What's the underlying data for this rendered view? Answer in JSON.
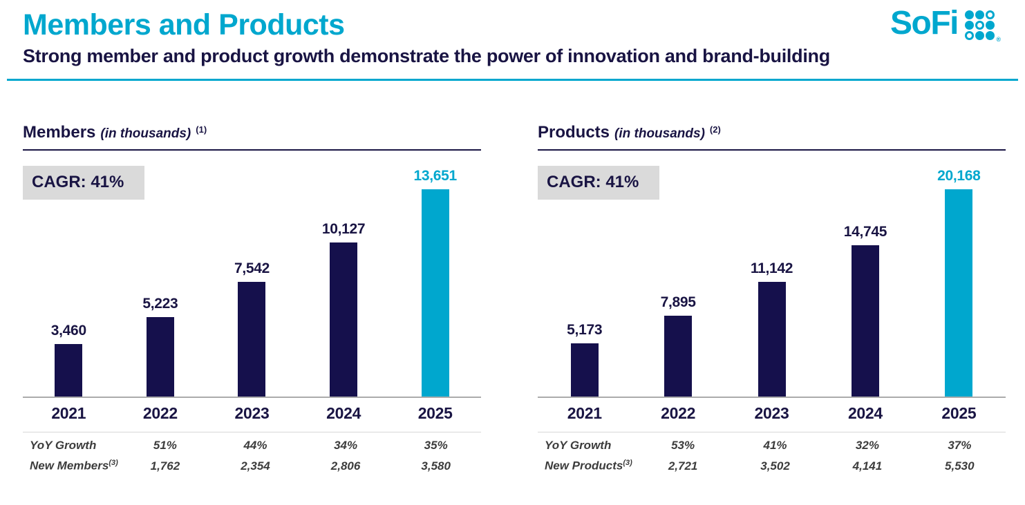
{
  "page": {
    "title": "Members and Products",
    "subtitle": "Strong member and product growth demonstrate the power of innovation and brand-building"
  },
  "logo": {
    "text": "SoFi",
    "registered": "®",
    "dot_pattern": [
      "filled",
      "filled",
      "ring",
      "filled",
      "ring",
      "filled",
      "ring",
      "filled",
      "filled"
    ]
  },
  "colors": {
    "teal": "#00A7CE",
    "navy": "#191443",
    "bar_navy": "#15104C",
    "cagr_bg": "#DADADA",
    "table_text": "#3C3C3C"
  },
  "charts": [
    {
      "title": "Members",
      "unit_label": "(in thousands)",
      "footnote_ref": "(1)",
      "cagr_label": "CAGR: 41%",
      "table": {
        "rows": [
          {
            "label": "YoY Growth",
            "sup": "",
            "values": [
              "51%",
              "44%",
              "34%",
              "35%"
            ]
          },
          {
            "label": "New Members",
            "sup": "(3)",
            "values": [
              "1,762",
              "2,354",
              "2,806",
              "3,580"
            ]
          }
        ]
      }
    },
    {
      "title": "Products",
      "unit_label": "(in thousands)",
      "footnote_ref": "(2)",
      "cagr_label": "CAGR: 41%",
      "table": {
        "rows": [
          {
            "label": "YoY Growth",
            "sup": "",
            "values": [
              "53%",
              "41%",
              "32%",
              "37%"
            ]
          },
          {
            "label": "New Products",
            "sup": "(3)",
            "values": [
              "2,721",
              "3,502",
              "4,141",
              "5,530"
            ]
          }
        ]
      }
    }
  ],
  "chart_data": [
    {
      "type": "bar",
      "title": "Members (in thousands)",
      "categories": [
        "2021",
        "2022",
        "2023",
        "2024",
        "2025"
      ],
      "values": [
        3460,
        5223,
        7542,
        10127,
        13651
      ],
      "value_labels": [
        "3,460",
        "5,223",
        "7,542",
        "10,127",
        "13,651"
      ],
      "highlight_index": 4,
      "bar_color": "#15104C",
      "highlight_color": "#00A7CE",
      "cagr": "41%",
      "yoy_growth": [
        "51%",
        "44%",
        "34%",
        "35%"
      ],
      "new_added": [
        1762,
        2354,
        2806,
        3580
      ],
      "ylim": [
        0,
        13651
      ],
      "grid": false,
      "legend": "none"
    },
    {
      "type": "bar",
      "title": "Products (in thousands)",
      "categories": [
        "2021",
        "2022",
        "2023",
        "2024",
        "2025"
      ],
      "values": [
        5173,
        7895,
        11142,
        14745,
        20168
      ],
      "value_labels": [
        "5,173",
        "7,895",
        "11,142",
        "14,745",
        "20,168"
      ],
      "highlight_index": 4,
      "bar_color": "#15104C",
      "highlight_color": "#00A7CE",
      "cagr": "41%",
      "yoy_growth": [
        "53%",
        "41%",
        "32%",
        "37%"
      ],
      "new_added": [
        2721,
        3502,
        4141,
        5530
      ],
      "ylim": [
        0,
        20168
      ],
      "grid": false,
      "legend": "none"
    }
  ]
}
